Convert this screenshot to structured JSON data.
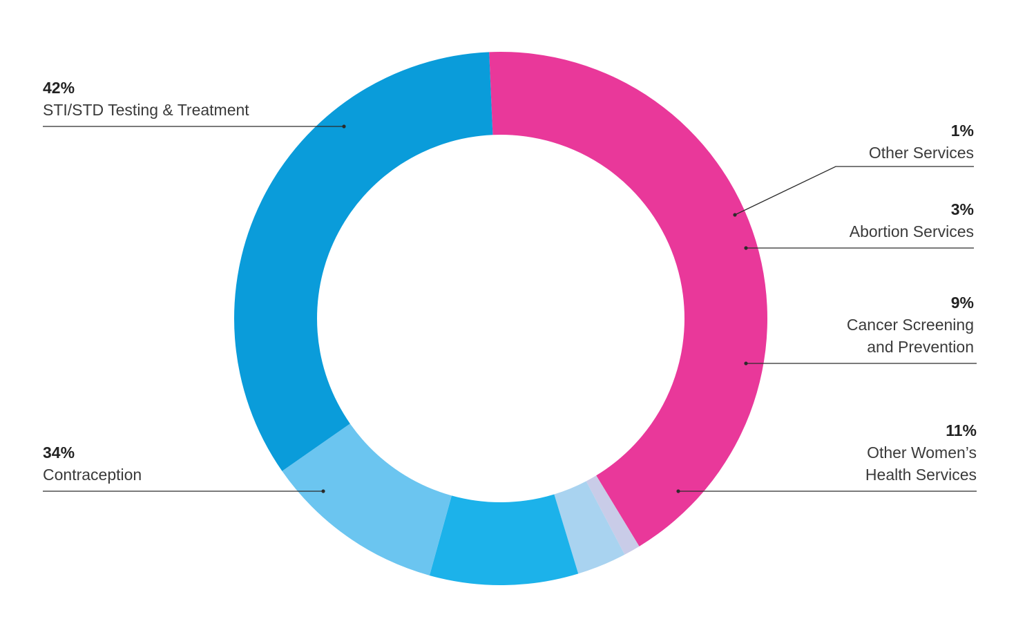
{
  "chart_data": {
    "type": "pie",
    "style": "donut",
    "title": "",
    "slices": [
      {
        "value": 42,
        "pct_label": "42%",
        "lines": [
          "STI/STD Testing & Treatment"
        ],
        "color": "#E9389A"
      },
      {
        "value": 1,
        "pct_label": "1%",
        "lines": [
          "Other Services"
        ],
        "color": "#C9CCE8"
      },
      {
        "value": 3,
        "pct_label": "3%",
        "lines": [
          "Abortion Services"
        ],
        "color": "#A9D3F0"
      },
      {
        "value": 9,
        "pct_label": "9%",
        "lines": [
          "Cancer Screening",
          "and Prevention"
        ],
        "color": "#1CB2EA"
      },
      {
        "value": 11,
        "pct_label": "11%",
        "lines": [
          "Other Women’s",
          "Health Services"
        ],
        "color": "#6BC5F0"
      },
      {
        "value": 34,
        "pct_label": "34%",
        "lines": [
          "Contraception"
        ],
        "color": "#0A9CDA"
      }
    ]
  }
}
